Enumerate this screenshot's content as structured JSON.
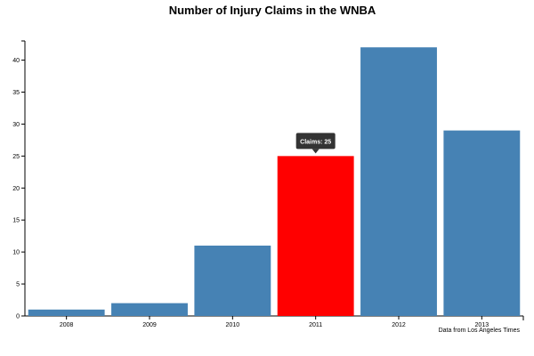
{
  "chart_data": {
    "type": "bar",
    "title": "Number of Injury Claims in the WNBA",
    "xlabel": "",
    "ylabel": "",
    "categories": [
      "2008",
      "2009",
      "2010",
      "2011",
      "2012",
      "2013"
    ],
    "values": [
      1,
      2,
      11,
      25,
      42,
      29
    ],
    "ylim": [
      0,
      43
    ],
    "yticks": [
      0,
      5,
      10,
      15,
      20,
      25,
      30,
      35,
      40
    ],
    "grid": false,
    "legend": "none",
    "highlighted_category": "2011",
    "tooltip": "Claims: 25",
    "source_note": "Data from Los Angeles Times"
  },
  "colors": {
    "bar": "#4682b4",
    "highlight": "#ff0000",
    "tooltip_bg": "#333333",
    "axis": "#000000"
  }
}
